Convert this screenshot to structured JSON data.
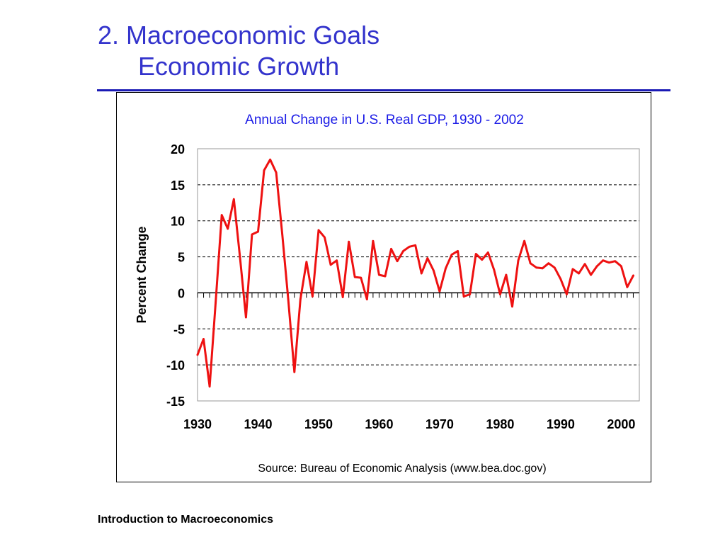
{
  "slide": {
    "title_line1": "2.  Macroeconomic Goals",
    "title_line2": "Economic Growth",
    "footer": "Introduction to Macroeconomics",
    "title_color": "#3333cc",
    "rule_color": "#1a1ab5"
  },
  "chart_data": {
    "type": "line",
    "title": "Annual Change in U.S. Real GDP, 1930 - 2002",
    "ylabel": "Percent Change",
    "xlabel": "",
    "source": "Source: Bureau of Economic Analysis (www.bea.doc.gov)",
    "x_ticks": [
      "1930",
      "1940",
      "1950",
      "1960",
      "1970",
      "1980",
      "1990",
      "2000"
    ],
    "y_ticks": [
      "20",
      "15",
      "10",
      "5",
      "0",
      "-5",
      "-10",
      "-15"
    ],
    "xlim": [
      1930,
      2003
    ],
    "ylim": [
      -15,
      20
    ],
    "grid": "horizontal dashed",
    "title_color": "#1a1ae6",
    "line_color": "#ee1111",
    "series": [
      {
        "x": [
          1930,
          1931,
          1932,
          1933,
          1934,
          1935,
          1936,
          1937,
          1938,
          1939,
          1940,
          1941,
          1942,
          1943,
          1944,
          1945,
          1946,
          1947,
          1948,
          1949,
          1950,
          1951,
          1952,
          1953,
          1954,
          1955,
          1956,
          1957,
          1958,
          1959,
          1960,
          1961,
          1962,
          1963,
          1964,
          1965,
          1966,
          1967,
          1968,
          1969,
          1970,
          1971,
          1972,
          1973,
          1974,
          1975,
          1976,
          1977,
          1978,
          1979,
          1980,
          1981,
          1982,
          1983,
          1984,
          1985,
          1986,
          1987,
          1988,
          1989,
          1990,
          1991,
          1992,
          1993,
          1994,
          1995,
          1996,
          1997,
          1998,
          1999,
          2000,
          2001,
          2002
        ],
        "values": [
          -8.6,
          -6.4,
          -13.0,
          -1.3,
          10.8,
          8.9,
          13.0,
          5.1,
          -3.4,
          8.1,
          8.5,
          17.0,
          18.5,
          16.7,
          8.1,
          -1.0,
          -11.0,
          -0.9,
          4.3,
          -0.5,
          8.7,
          7.7,
          3.9,
          4.5,
          -0.6,
          7.1,
          2.2,
          2.1,
          -0.9,
          7.2,
          2.5,
          2.3,
          6.1,
          4.4,
          5.8,
          6.4,
          6.6,
          2.7,
          4.8,
          3.1,
          0.2,
          3.4,
          5.3,
          5.8,
          -0.5,
          -0.2,
          5.4,
          4.6,
          5.6,
          3.2,
          -0.2,
          2.5,
          -1.9,
          4.5,
          7.2,
          4.1,
          3.5,
          3.4,
          4.1,
          3.5,
          1.9,
          -0.2,
          3.3,
          2.7,
          4.0,
          2.5,
          3.7,
          4.5,
          4.2,
          4.4,
          3.7,
          0.8,
          2.4
        ]
      }
    ]
  }
}
